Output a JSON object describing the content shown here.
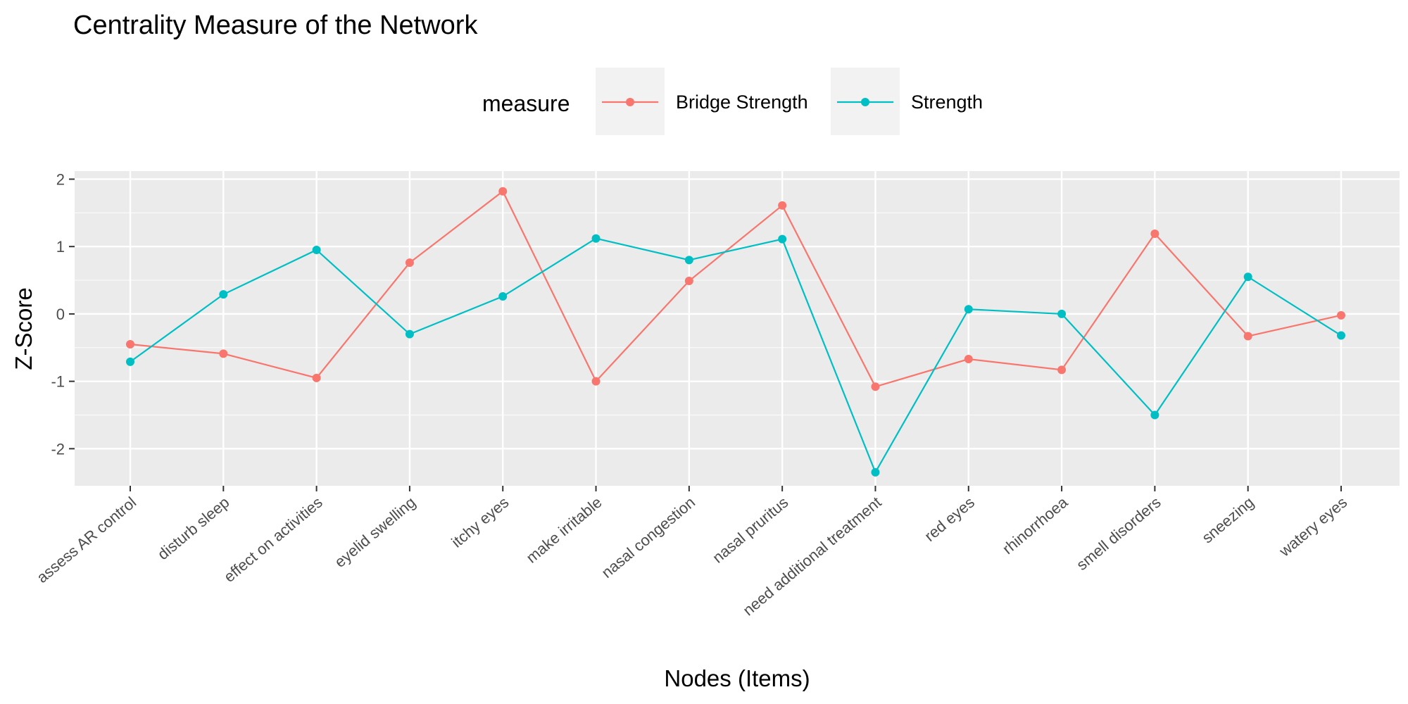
{
  "chart_data": {
    "type": "line",
    "title": "Centrality Measure of the Network",
    "xlabel": "Nodes (Items)",
    "ylabel": "Z-Score",
    "legend": {
      "title": "measure",
      "position": "top"
    },
    "categories": [
      "assess AR control",
      "disturb sleep",
      "effect on activities",
      "eyelid swelling",
      "itchy eyes",
      "make irritable",
      "nasal congestion",
      "nasal pruritus",
      "need additional treatment",
      "red eyes",
      "rhinorrhoea",
      "smell disorders",
      "sneezing",
      "watery eyes"
    ],
    "series": [
      {
        "name": "Bridge Strength",
        "color": "#F8766D",
        "values": [
          -0.45,
          -0.59,
          -0.95,
          0.76,
          1.82,
          -1.0,
          0.49,
          1.61,
          -1.08,
          -0.67,
          -0.83,
          1.19,
          -0.33,
          -0.02
        ]
      },
      {
        "name": "Strength",
        "color": "#00BFC4",
        "values": [
          -0.71,
          0.29,
          0.95,
          -0.3,
          0.26,
          1.12,
          0.8,
          1.11,
          -2.35,
          0.07,
          0.0,
          -1.5,
          0.55,
          -0.32
        ]
      }
    ],
    "yticks": [
      "2",
      "1",
      "0",
      "-1",
      "-2"
    ],
    "ytick_values": [
      2,
      1,
      0,
      -1,
      -2
    ],
    "ylim": [
      -2.55,
      2.12
    ],
    "grid": true,
    "panel_background": "#EBEBEB"
  }
}
